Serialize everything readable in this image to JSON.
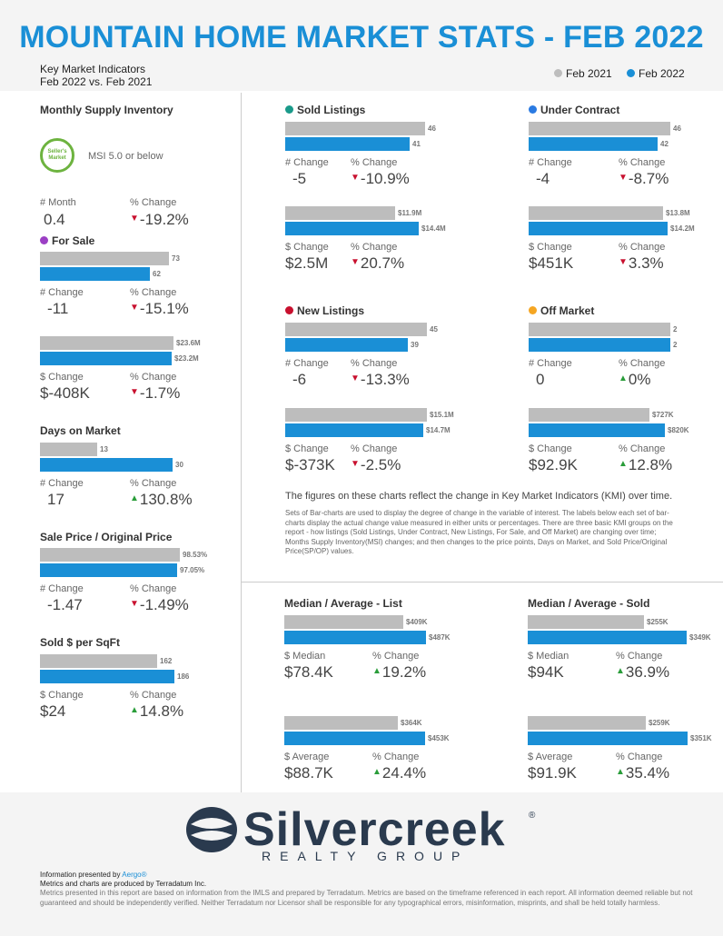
{
  "header": {
    "title": "MOUNTAIN HOME MARKET STATS - FEB 2022",
    "subtitle_line1": "Key Market Indicators",
    "subtitle_line2": "Feb 2022 vs. Feb 2021",
    "legend": [
      {
        "label": "Feb 2021",
        "color": "#bdbdbd"
      },
      {
        "label": "Feb 2022",
        "color": "#1a8fd6"
      }
    ]
  },
  "colors": {
    "feb2021": "#bdbdbd",
    "feb2022": "#1a8fd6",
    "down": "#c8102e",
    "up": "#2a9d3a"
  },
  "msi": {
    "title": "Monthly Supply Inventory",
    "badge": "Seller's Market",
    "note": "MSI 5.0 or below",
    "month_label": "# Month",
    "month_value": "0.4",
    "pct_label": "% Change",
    "pct_value": "-19.2%",
    "pct_dir": "down"
  },
  "chart_data": [
    {
      "type": "bar",
      "title": "For Sale",
      "dot_color": "#9b3fc4",
      "max": 80,
      "values": {
        "Feb 2021": 73,
        "Feb 2022": 62
      },
      "bar_labels": [
        "73",
        "62"
      ],
      "change_label": "# Change",
      "change": "-11",
      "pct_label": "% Change",
      "pct": "-15.1%",
      "dir": "down"
    },
    {
      "type": "bar",
      "title": "",
      "max": 25,
      "values": {
        "Feb 2021": 23.6,
        "Feb 2022": 23.2
      },
      "bar_labels": [
        "$23.6M",
        "$23.2M"
      ],
      "change_label": "$ Change",
      "change": "$-408K",
      "pct_label": "% Change",
      "pct": "-1.7%",
      "dir": "down"
    },
    {
      "type": "bar",
      "title": "Days on Market",
      "max": 32,
      "values": {
        "Feb 2021": 13,
        "Feb 2022": 30
      },
      "bar_labels": [
        "13",
        "30"
      ],
      "change_label": "# Change",
      "change": "17",
      "pct_label": "% Change",
      "pct": "130.8%",
      "dir": "up"
    },
    {
      "type": "bar",
      "title": "Sale Price / Original Price",
      "max": 100,
      "values": {
        "Feb 2021": 98.53,
        "Feb 2022": 97.05
      },
      "bar_labels": [
        "98.53%",
        "97.05%"
      ],
      "change_label": "# Change",
      "change": "-1.47",
      "pct_label": "% Change",
      "pct": "-1.49%",
      "dir": "down"
    },
    {
      "type": "bar",
      "title": "Sold $ per SqFt",
      "max": 196,
      "values": {
        "Feb 2021": 162,
        "Feb 2022": 186
      },
      "bar_labels": [
        "162",
        "186"
      ],
      "change_label": "$ Change",
      "change": "$24",
      "pct_label": "% Change",
      "pct": "14.8%",
      "dir": "up"
    },
    {
      "type": "bar",
      "title": "Sold Listings",
      "dot_color": "#1a9a8a",
      "max": 46,
      "values": {
        "Feb 2021": 46,
        "Feb 2022": 41
      },
      "bar_labels": [
        "46",
        "41"
      ],
      "change_label": "# Change",
      "change": "-5",
      "pct_label": "% Change",
      "pct": "-10.9%",
      "dir": "down"
    },
    {
      "type": "bar",
      "title": "",
      "max": 15.3,
      "values": {
        "Feb 2021": 11.9,
        "Feb 2022": 14.4
      },
      "bar_labels": [
        "$11.9M",
        "$14.4M"
      ],
      "change_label": "$ Change",
      "change": "$2.5M",
      "pct_label": "% Change",
      "pct": "20.7%",
      "dir": "down"
    },
    {
      "type": "bar",
      "title": "Under Contract",
      "dot_color": "#2a7ae2",
      "max": 46,
      "values": {
        "Feb 2021": 46,
        "Feb 2022": 42
      },
      "bar_labels": [
        "46",
        "42"
      ],
      "change_label": "# Change",
      "change": "-4",
      "pct_label": "% Change",
      "pct": "-8.7%",
      "dir": "down"
    },
    {
      "type": "bar",
      "title": "",
      "max": 14.5,
      "values": {
        "Feb 2021": 13.8,
        "Feb 2022": 14.2
      },
      "bar_labels": [
        "$13.8M",
        "$14.2M"
      ],
      "change_label": "$ Change",
      "change": "$451K",
      "pct_label": "% Change",
      "pct": "3.3%",
      "dir": "down"
    },
    {
      "type": "bar",
      "title": "New Listings",
      "dot_color": "#c8102e",
      "max": 45,
      "values": {
        "Feb 2021": 45,
        "Feb 2022": 39
      },
      "bar_labels": [
        "45",
        "39"
      ],
      "change_label": "# Change",
      "change": "-6",
      "pct_label": "% Change",
      "pct": "-13.3%",
      "dir": "down"
    },
    {
      "type": "bar",
      "title": "",
      "max": 15.1,
      "values": {
        "Feb 2021": 15.1,
        "Feb 2022": 14.7
      },
      "bar_labels": [
        "$15.1M",
        "$14.7M"
      ],
      "change_label": "$ Change",
      "change": "$-373K",
      "pct_label": "% Change",
      "pct": "-2.5%",
      "dir": "down"
    },
    {
      "type": "bar",
      "title": "Off Market",
      "dot_color": "#f5a623",
      "max": 2,
      "values": {
        "Feb 2021": 2,
        "Feb 2022": 2
      },
      "bar_labels": [
        "2",
        "2"
      ],
      "change_label": "# Change",
      "change": "0",
      "pct_label": "% Change",
      "pct": "0%",
      "dir": "up"
    },
    {
      "type": "bar",
      "title": "",
      "max": 850,
      "values": {
        "Feb 2021": 727,
        "Feb 2022": 820
      },
      "bar_labels": [
        "$727K",
        "$820K"
      ],
      "change_label": "$ Change",
      "change": "$92.9K",
      "pct_label": "% Change",
      "pct": "12.8%",
      "dir": "up"
    },
    {
      "type": "bar",
      "title": "Median / Average - List",
      "max": 487,
      "values": {
        "Feb 2021": 409,
        "Feb 2022": 487
      },
      "bar_labels": [
        "$409K",
        "$487K"
      ],
      "change_label": "$ Median",
      "change": "$78.4K",
      "pct_label": "% Change",
      "pct": "19.2%",
      "dir": "up"
    },
    {
      "type": "bar",
      "title": "",
      "max": 455,
      "values": {
        "Feb 2021": 364,
        "Feb 2022": 453
      },
      "bar_labels": [
        "$364K",
        "$453K"
      ],
      "change_label": "$ Average",
      "change": "$88.7K",
      "pct_label": "% Change",
      "pct": "24.4%",
      "dir": "up"
    },
    {
      "type": "bar",
      "title": "Median / Average - Sold",
      "max": 370,
      "values": {
        "Feb 2021": 255,
        "Feb 2022": 349
      },
      "bar_labels": [
        "$255K",
        "$349K"
      ],
      "change_label": "$ Median",
      "change": "$94K",
      "pct_label": "% Change",
      "pct": "36.9%",
      "dir": "up"
    },
    {
      "type": "bar",
      "title": "",
      "max": 370,
      "values": {
        "Feb 2021": 259,
        "Feb 2022": 351
      },
      "bar_labels": [
        "$259K",
        "$351K"
      ],
      "change_label": "$ Average",
      "change": "$91.9K",
      "pct_label": "% Change",
      "pct": "35.4%",
      "dir": "up"
    }
  ],
  "notes": {
    "main": "The figures on these charts reflect the change in Key Market Indicators (KMI) over time.",
    "detail": "Sets of Bar-charts are used to display the degree of change in the variable of interest. The labels below each set of bar-charts display the actual change value measured in either units or percentages. There are three basic KMI groups on the report - how listings (Sold Listings, Under Contract, New Listings, For Sale, and Off Market) are changing over time; Months Supply Inventory(MSI) changes; and then changes to the price points, Days on Market, and Sold Price/Original Price(SP/OP) values."
  },
  "footer": {
    "logo_name": "Silvercreek",
    "logo_sub": "REALTY GROUP",
    "reg": "®",
    "presented_prefix": "Information presented by ",
    "presented_by": "Aergo®",
    "produced": "Metrics and charts are produced by Terradatum Inc.",
    "disclaimer": "Metrics presented in this report are based on information from the IMLS and prepared by Terradatum. Metrics are based on the timeframe referenced in each report. All information deemed reliable but not guaranteed and should be independently verified. Neither Terradatum nor Licensor shall be responsible for any typographical errors, misinformation, misprints, and shall be held totally harmless."
  }
}
